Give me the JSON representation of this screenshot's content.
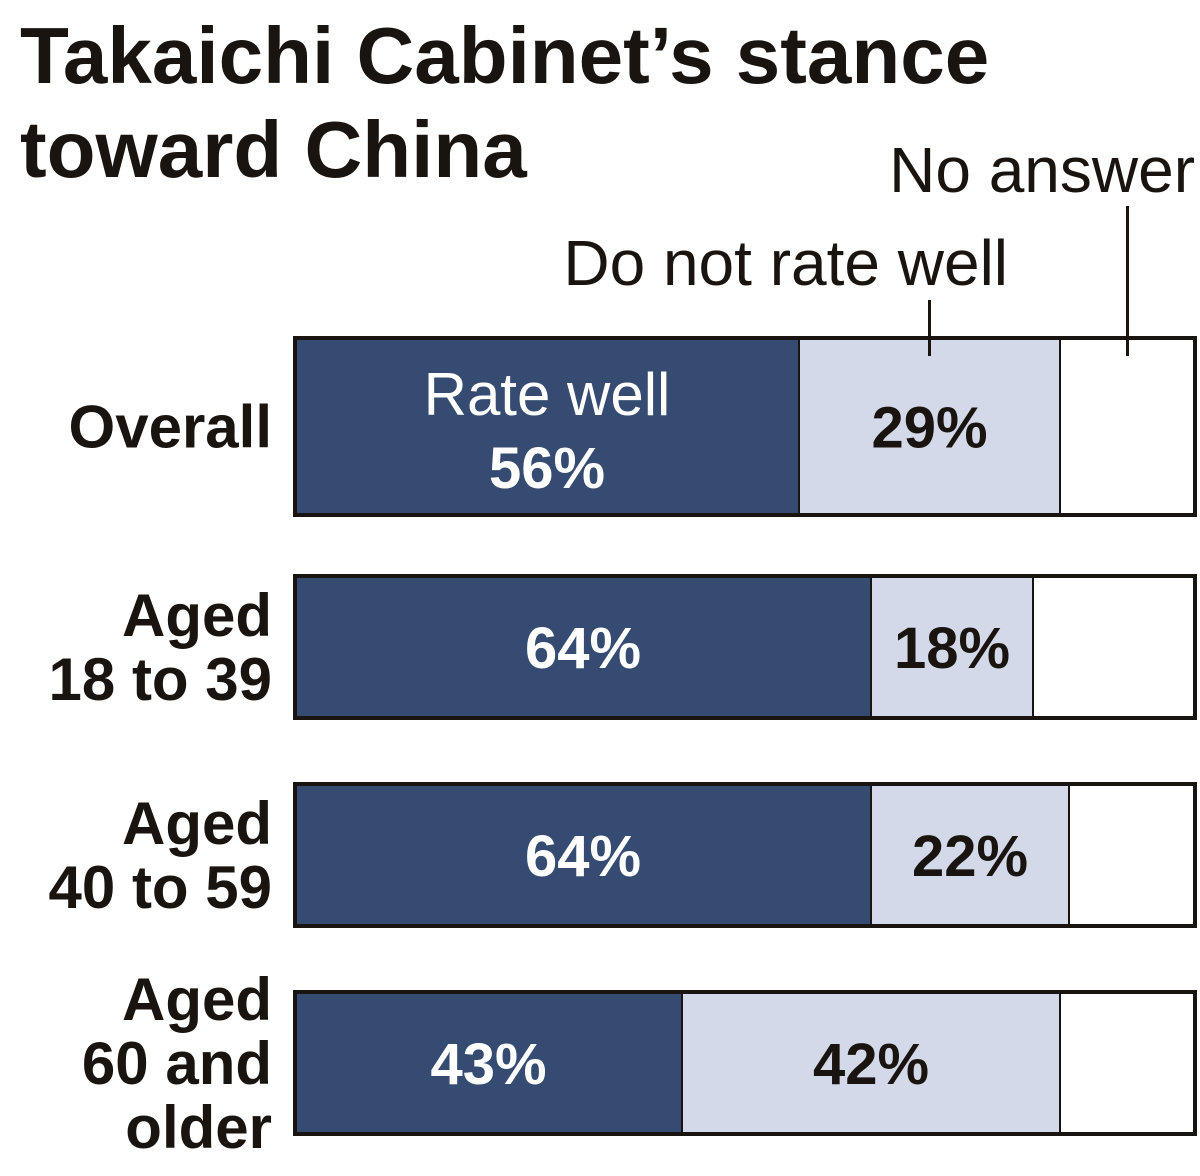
{
  "chart_data": {
    "type": "bar",
    "orientation": "horizontal",
    "stacked": true,
    "title": [
      "Takaichi Cabinet’s stance",
      "toward China"
    ],
    "categories": [
      [
        "Overall"
      ],
      [
        "Aged",
        "18 to 39"
      ],
      [
        "Aged",
        "40 to 59"
      ],
      [
        "Aged",
        "60 and",
        "older"
      ]
    ],
    "series": [
      {
        "name": "Rate well",
        "values": [
          56,
          64,
          64,
          43
        ],
        "labels": [
          "56%",
          "64%",
          "64%",
          "43%"
        ],
        "color": "#354b71"
      },
      {
        "name": "Do not rate well",
        "values": [
          29,
          18,
          22,
          42
        ],
        "labels": [
          "29%",
          "18%",
          "22%",
          "42%"
        ],
        "color": "#d3d9e8"
      },
      {
        "name": "No answer",
        "values": [
          15,
          18,
          14,
          15
        ],
        "labels": [
          "",
          "",
          "",
          ""
        ],
        "color": "#ffffff"
      }
    ],
    "xlim": [
      0,
      100
    ],
    "grid": false,
    "legend": "callouts-above"
  }
}
